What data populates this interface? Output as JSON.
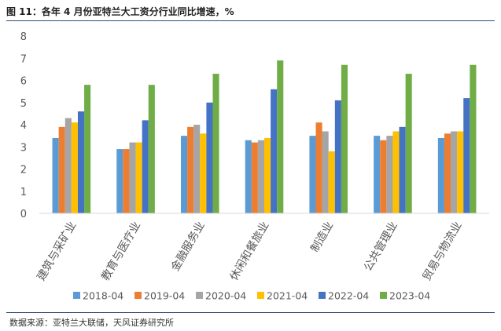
{
  "figure": {
    "title": "图 11：各年 4 月份亚特兰大工资分行业同比增速，%",
    "source": "数据来源：亚特兰大联储，天风证券研究所"
  },
  "colors": {
    "rule": "#2e4c77",
    "axis": "#d9d9d9",
    "tick_text": "#595959",
    "legend_text": "#595959"
  },
  "chart_data": {
    "type": "bar",
    "categories": [
      "建筑与采矿业",
      "教育与医疗业",
      "金融服务业",
      "休闲和餐旅业",
      "制造业",
      "公共管理业",
      "贸易与物流业"
    ],
    "series": [
      {
        "name": "2018-04",
        "color": "#5b9bd5",
        "values": [
          3.4,
          2.9,
          3.5,
          3.3,
          3.5,
          3.5,
          3.4
        ]
      },
      {
        "name": "2019-04",
        "color": "#ed7d31",
        "values": [
          3.9,
          2.9,
          3.9,
          3.2,
          4.1,
          3.3,
          3.6
        ]
      },
      {
        "name": "2020-04",
        "color": "#a5a5a5",
        "values": [
          4.3,
          3.2,
          4.0,
          3.3,
          3.7,
          3.5,
          3.7
        ]
      },
      {
        "name": "2021-04",
        "color": "#ffc000",
        "values": [
          4.1,
          3.2,
          3.6,
          3.4,
          2.8,
          3.7,
          3.7
        ]
      },
      {
        "name": "2022-04",
        "color": "#4472c4",
        "values": [
          4.6,
          4.2,
          5.0,
          5.6,
          5.1,
          3.9,
          5.2
        ]
      },
      {
        "name": "2023-04",
        "color": "#70ad47",
        "values": [
          5.8,
          5.8,
          6.3,
          6.9,
          6.7,
          6.3,
          6.7
        ]
      }
    ],
    "ylim": [
      0,
      8
    ],
    "yticks": [
      "0",
      "1",
      "2",
      "3",
      "4",
      "5",
      "6",
      "7",
      "8"
    ],
    "grid": false,
    "legend_position": "bottom"
  }
}
